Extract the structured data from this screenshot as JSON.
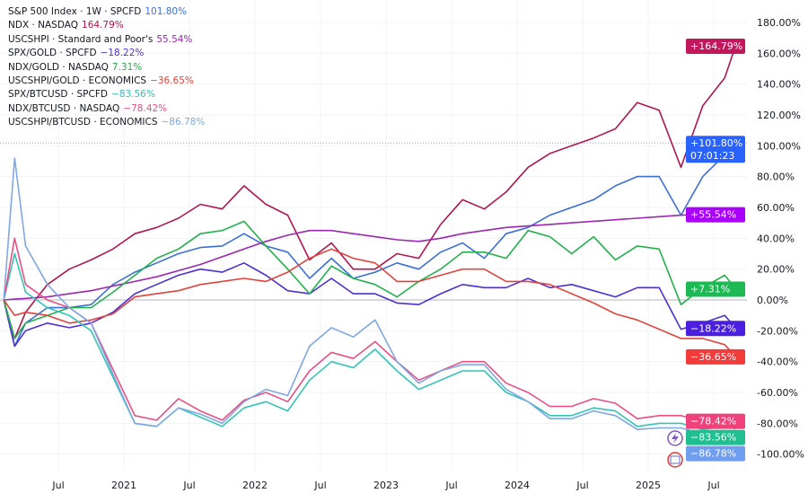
{
  "chart_data": {
    "type": "line",
    "title": "",
    "xlabel": "",
    "ylabel": "",
    "y_unit": "%",
    "ylim": [
      -100,
      190
    ],
    "y_ticks": [
      -100,
      -80,
      -60,
      -40,
      -20,
      0,
      20,
      40,
      60,
      80,
      100,
      120,
      140,
      160,
      180
    ],
    "y_tick_labels": [
      "-100.00%",
      "-80.00%",
      "-60.00%",
      "-40.00%",
      "-20.00%",
      "0.00%",
      "20.00%",
      "40.00%",
      "60.00%",
      "80.00%",
      "100.00%",
      "120.00%",
      "140.00%",
      "160.00%",
      "180.00%"
    ],
    "x_tick_labels": [
      {
        "date": "2020-07",
        "label": "Jul"
      },
      {
        "date": "2021-01",
        "label": "2021"
      },
      {
        "date": "2021-07",
        "label": "Jul"
      },
      {
        "date": "2022-01",
        "label": "2022"
      },
      {
        "date": "2022-07",
        "label": "Jul"
      },
      {
        "date": "2023-01",
        "label": "2023"
      },
      {
        "date": "2023-07",
        "label": "Jul"
      },
      {
        "date": "2024-01",
        "label": "2024"
      },
      {
        "date": "2024-07",
        "label": "Jul"
      },
      {
        "date": "2025-01",
        "label": "2025"
      },
      {
        "date": "2025-07",
        "label": "Jul"
      }
    ],
    "grid": true,
    "legend_placement": "top-left",
    "x": [
      "2020-02",
      "2020-03",
      "2020-04",
      "2020-06",
      "2020-08",
      "2020-10",
      "2020-12",
      "2021-02",
      "2021-04",
      "2021-06",
      "2021-08",
      "2021-10",
      "2021-12",
      "2022-02",
      "2022-04",
      "2022-06",
      "2022-08",
      "2022-10",
      "2022-12",
      "2023-02",
      "2023-04",
      "2023-06",
      "2023-08",
      "2023-10",
      "2023-12",
      "2024-02",
      "2024-04",
      "2024-06",
      "2024-08",
      "2024-10",
      "2024-12",
      "2025-02",
      "2025-04",
      "2025-06",
      "2025-08",
      "2025-09"
    ],
    "series": [
      {
        "name": "S&P 500 Index · 1W · SPCFD",
        "last": "101.80%",
        "tag": "+101.80%",
        "tag2": "07:01:23",
        "color": "#3b6fd6",
        "tag_color": "#2962ff",
        "values": [
          0,
          -30,
          -15,
          -5,
          -5,
          -3,
          10,
          18,
          24,
          30,
          34,
          35,
          43,
          35,
          31,
          14,
          27,
          14,
          18,
          24,
          20,
          31,
          37,
          27,
          43,
          47,
          55,
          60,
          65,
          74,
          80,
          80,
          55,
          80,
          94,
          101.8
        ]
      },
      {
        "name": "NDX · NASDAQ",
        "last": "164.79%",
        "tag": "+164.79%",
        "color": "#b0164f",
        "tag_color": "#c2185b",
        "values": [
          0,
          -25,
          -8,
          10,
          20,
          26,
          33,
          43,
          47,
          53,
          62,
          59,
          74,
          62,
          55,
          26,
          37,
          20,
          20,
          30,
          27,
          49,
          65,
          59,
          70,
          86,
          95,
          100,
          105,
          111,
          128,
          123,
          86,
          126,
          144,
          164.79
        ]
      },
      {
        "name": "USCSHPI · Standard and Poor's",
        "last": "55.54%",
        "tag": "+55.54%",
        "color": "#9c27b0",
        "tag_color": "#aa00ff",
        "values": [
          0,
          0.5,
          1,
          2,
          4,
          6,
          9,
          12,
          15,
          19,
          23,
          28,
          33,
          38,
          42,
          45,
          45,
          43,
          41,
          39,
          38,
          40,
          43,
          45,
          47,
          48,
          49,
          50,
          51,
          52,
          53,
          54,
          55,
          55.5,
          55.5,
          55.54
        ]
      },
      {
        "name": "SPX/GOLD · SPCFD",
        "last": "−18.22%",
        "tag": "−18.22%",
        "color": "#4f2fd2",
        "tag_color": "#4a1fe0",
        "values": [
          0,
          -30,
          -20,
          -15,
          -18,
          -15,
          -8,
          4,
          10,
          16,
          20,
          18,
          24,
          16,
          6,
          4,
          14,
          4,
          4,
          -2,
          -3,
          4,
          10,
          8,
          8,
          14,
          8,
          10,
          6,
          2,
          8,
          8,
          -19,
          -15,
          -10,
          -18.22
        ]
      },
      {
        "name": "NDX/GOLD · NASDAQ",
        "last": "7.31%",
        "tag": "+7.31%",
        "color": "#22b14c",
        "tag_color": "#1db954",
        "values": [
          0,
          -25,
          -15,
          -10,
          -5,
          -5,
          5,
          16,
          27,
          33,
          43,
          45,
          51,
          35,
          20,
          4,
          22,
          14,
          10,
          2,
          12,
          20,
          31,
          31,
          27,
          45,
          41,
          30,
          41,
          26,
          35,
          33,
          -3,
          8,
          16,
          7.31
        ]
      },
      {
        "name": "USCSHPI/GOLD · ECONOMICS",
        "last": "−36.65%",
        "tag": "−36.65%",
        "color": "#e0443c",
        "tag_color": "#f23c3c",
        "values": [
          0,
          -10,
          -8,
          -10,
          -15,
          -13,
          -9,
          2,
          4,
          6,
          10,
          12,
          14,
          12,
          18,
          27,
          33,
          27,
          24,
          12,
          12,
          16,
          20,
          20,
          12,
          12,
          10,
          4,
          -2,
          -9,
          -13,
          -19,
          -25,
          -25,
          -29,
          -36.65
        ]
      },
      {
        "name": "SPX/BTCUSD · SPCFD",
        "last": "−83.56%",
        "tag": "−83.56%",
        "color": "#34c3b4",
        "tag_color": "#1fbf8f",
        "values": [
          0,
          30,
          5,
          -5,
          -10,
          -20,
          -50,
          -80,
          -82,
          -70,
          -76,
          -82,
          -70,
          -66,
          -72,
          -52,
          -40,
          -44,
          -32,
          -46,
          -58,
          -52,
          -46,
          -46,
          -60,
          -66,
          -75,
          -75,
          -70,
          -72,
          -82,
          -80,
          -80,
          -84,
          -82,
          -83.56
        ]
      },
      {
        "name": "NDX/BTCUSD · NASDAQ",
        "last": "−78.42%",
        "tag": "−78.42%",
        "color": "#ea4f82",
        "tag_color": "#f0427a",
        "values": [
          0,
          40,
          10,
          0,
          -5,
          -15,
          -45,
          -75,
          -78,
          -64,
          -72,
          -78,
          -65,
          -60,
          -66,
          -46,
          -34,
          -38,
          -27,
          -40,
          -52,
          -46,
          -40,
          -40,
          -54,
          -60,
          -69,
          -69,
          -64,
          -67,
          -77,
          -75,
          -75,
          -79,
          -77,
          -78.42
        ]
      },
      {
        "name": "USCSHPI/BTCUSD · ECONOMICS",
        "last": "−86.78%",
        "tag": "−86.78%",
        "color": "#7fa7e4",
        "tag_color": "#6f9ef0",
        "values": [
          0,
          92,
          35,
          10,
          -5,
          -15,
          -48,
          -80,
          -82,
          -70,
          -74,
          -80,
          -66,
          -58,
          -62,
          -30,
          -18,
          -24,
          -13,
          -40,
          -54,
          -46,
          -42,
          -42,
          -58,
          -66,
          -77,
          -77,
          -72,
          -75,
          -84,
          -83,
          -83,
          -87,
          -86,
          -86.78
        ]
      }
    ]
  }
}
